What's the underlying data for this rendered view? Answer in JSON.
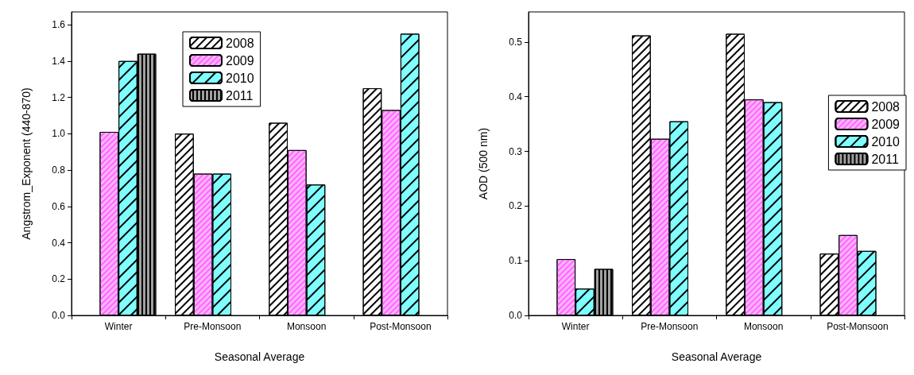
{
  "chart_data": [
    {
      "type": "bar",
      "xlabel": "Seasonal Average",
      "ylabel": "Angstrom_Exponent (440-870)",
      "categories": [
        "Winter",
        "Pre-Monsoon",
        "Monsoon",
        "Post-Monsoon"
      ],
      "ylim": [
        0,
        1.67
      ],
      "yticks": [
        {
          "value": 0,
          "label": "0.0"
        },
        {
          "value": 0.2,
          "label": "0.2"
        },
        {
          "value": 0.4,
          "label": "0.4"
        },
        {
          "value": 0.6,
          "label": "0.6"
        },
        {
          "value": 0.8,
          "label": "0.8"
        },
        {
          "value": 1,
          "label": "1.0"
        },
        {
          "value": 1.2,
          "label": "1.2"
        },
        {
          "value": 1.4,
          "label": "1.4"
        },
        {
          "value": 1.6,
          "label": "1.6"
        }
      ],
      "legend": "top",
      "series": [
        {
          "name": "2008",
          "color": "#ffffff",
          "values": [
            null,
            1.0,
            1.06,
            1.25
          ]
        },
        {
          "name": "2009",
          "color": "#ffb3ff",
          "values": [
            1.01,
            0.78,
            0.91,
            1.13
          ]
        },
        {
          "name": "2010",
          "color": "#80ffff",
          "values": [
            1.4,
            0.78,
            0.72,
            1.55
          ]
        },
        {
          "name": "2011",
          "color": "#a0a0a0",
          "values": [
            1.44,
            null,
            null,
            null
          ]
        }
      ]
    },
    {
      "type": "bar",
      "xlabel": "Seasonal Average",
      "ylabel": "AOD (500 nm)",
      "categories": [
        "Winter",
        "Pre-Monsoon",
        "Monsoon",
        "Post-Monsoon"
      ],
      "ylim": [
        0,
        0.555
      ],
      "yticks": [
        {
          "value": 0,
          "label": "0.0"
        },
        0.1,
        0.2,
        0.3,
        0.4,
        0.5
      ],
      "legend": "right",
      "series": [
        {
          "name": "2008",
          "color": "#ffffff",
          "values": [
            null,
            0.512,
            0.515,
            0.113
          ]
        },
        {
          "name": "2009",
          "color": "#ffb3ff",
          "values": [
            0.103,
            0.323,
            0.395,
            0.147
          ]
        },
        {
          "name": "2010",
          "color": "#80ffff",
          "values": [
            0.049,
            0.355,
            0.39,
            0.118
          ]
        },
        {
          "name": "2011",
          "color": "#a0a0a0",
          "values": [
            0.085,
            null,
            null,
            null
          ]
        }
      ]
    }
  ]
}
